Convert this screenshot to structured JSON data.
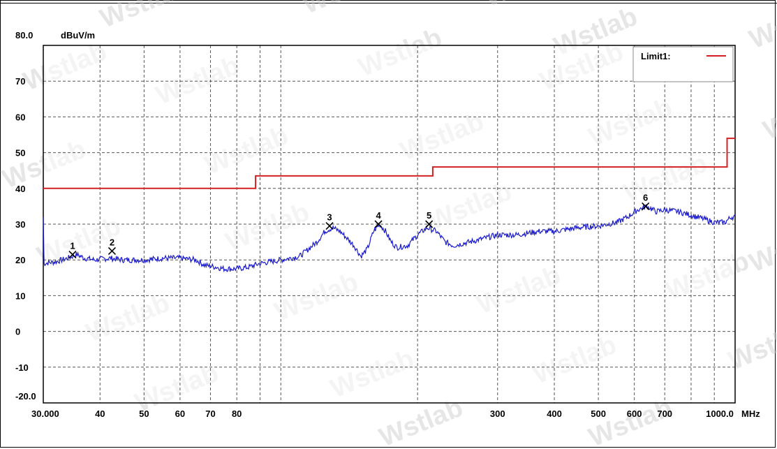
{
  "chart_data": {
    "type": "line",
    "title": "",
    "ylabel": "dBuV/m",
    "xunit": "MHz",
    "x_scale": "log",
    "xlim": [
      30,
      1000
    ],
    "ylim": [
      -20,
      80
    ],
    "grid": true,
    "y_ticks": [
      "80.0",
      "70",
      "60",
      "50",
      "40",
      "30",
      "20",
      "10",
      "0",
      "-10",
      "-20.0"
    ],
    "x_ticks": [
      {
        "label": "30.000",
        "value": 30
      },
      {
        "label": "40",
        "value": 40
      },
      {
        "label": "50",
        "value": 50
      },
      {
        "label": "60",
        "value": 60
      },
      {
        "label": "70",
        "value": 70
      },
      {
        "label": "80",
        "value": 80
      },
      {
        "label": "300",
        "value": 300
      },
      {
        "label": "400",
        "value": 400
      },
      {
        "label": "500",
        "value": 500
      },
      {
        "label": "600",
        "value": 600
      },
      {
        "label": "700",
        "value": 700
      },
      {
        "label": "1000.0",
        "value": 1000
      }
    ],
    "limit": {
      "name": "Limit1:",
      "color": "#d42020",
      "points": [
        [
          30,
          40
        ],
        [
          88,
          40
        ],
        [
          88,
          43.5
        ],
        [
          216,
          43.5
        ],
        [
          216,
          46
        ],
        [
          960,
          46
        ],
        [
          960,
          54
        ],
        [
          1000,
          54
        ]
      ]
    },
    "series": [
      {
        "color": "#1a1acc",
        "points": [
          [
            30,
            19
          ],
          [
            32,
            19.5
          ],
          [
            34,
            20.5
          ],
          [
            35.5,
            21.5
          ],
          [
            37,
            20.5
          ],
          [
            39,
            20
          ],
          [
            42,
            20.5
          ],
          [
            45,
            20
          ],
          [
            50,
            20
          ],
          [
            55,
            20.5
          ],
          [
            60,
            20.5
          ],
          [
            65,
            20
          ],
          [
            68,
            18.5
          ],
          [
            72,
            18
          ],
          [
            75,
            17.5
          ],
          [
            80,
            17.5
          ],
          [
            85,
            18
          ],
          [
            90,
            19
          ],
          [
            100,
            20
          ],
          [
            110,
            21
          ],
          [
            120,
            25
          ],
          [
            125,
            28
          ],
          [
            130,
            29
          ],
          [
            135,
            28
          ],
          [
            140,
            26
          ],
          [
            145,
            24
          ],
          [
            150,
            21
          ],
          [
            155,
            23
          ],
          [
            160,
            28
          ],
          [
            165,
            30
          ],
          [
            170,
            28
          ],
          [
            175,
            25
          ],
          [
            180,
            23.5
          ],
          [
            190,
            24
          ],
          [
            200,
            27
          ],
          [
            210,
            29
          ],
          [
            220,
            28
          ],
          [
            230,
            25
          ],
          [
            240,
            24
          ],
          [
            260,
            25
          ],
          [
            280,
            26
          ],
          [
            300,
            27
          ],
          [
            330,
            27
          ],
          [
            370,
            28
          ],
          [
            400,
            28
          ],
          [
            450,
            29
          ],
          [
            500,
            29.5
          ],
          [
            550,
            30.5
          ],
          [
            580,
            32
          ],
          [
            610,
            34
          ],
          [
            640,
            35
          ],
          [
            670,
            33.5
          ],
          [
            700,
            34
          ],
          [
            750,
            33.5
          ],
          [
            800,
            32.5
          ],
          [
            850,
            31.5
          ],
          [
            900,
            30.5
          ],
          [
            950,
            30.5
          ],
          [
            980,
            32
          ],
          [
            1000,
            32
          ]
        ]
      }
    ],
    "markers": [
      {
        "label": "1",
        "x": 34.8,
        "y": 21.5
      },
      {
        "label": "2",
        "x": 42.5,
        "y": 22.5
      },
      {
        "label": "3",
        "x": 128,
        "y": 29.5
      },
      {
        "label": "4",
        "x": 164,
        "y": 30
      },
      {
        "label": "5",
        "x": 212,
        "y": 30
      },
      {
        "label": "6",
        "x": 635,
        "y": 35
      }
    ],
    "legend": {
      "position": "top-right",
      "entry": "Limit1:"
    }
  },
  "watermark": "Wstlab"
}
